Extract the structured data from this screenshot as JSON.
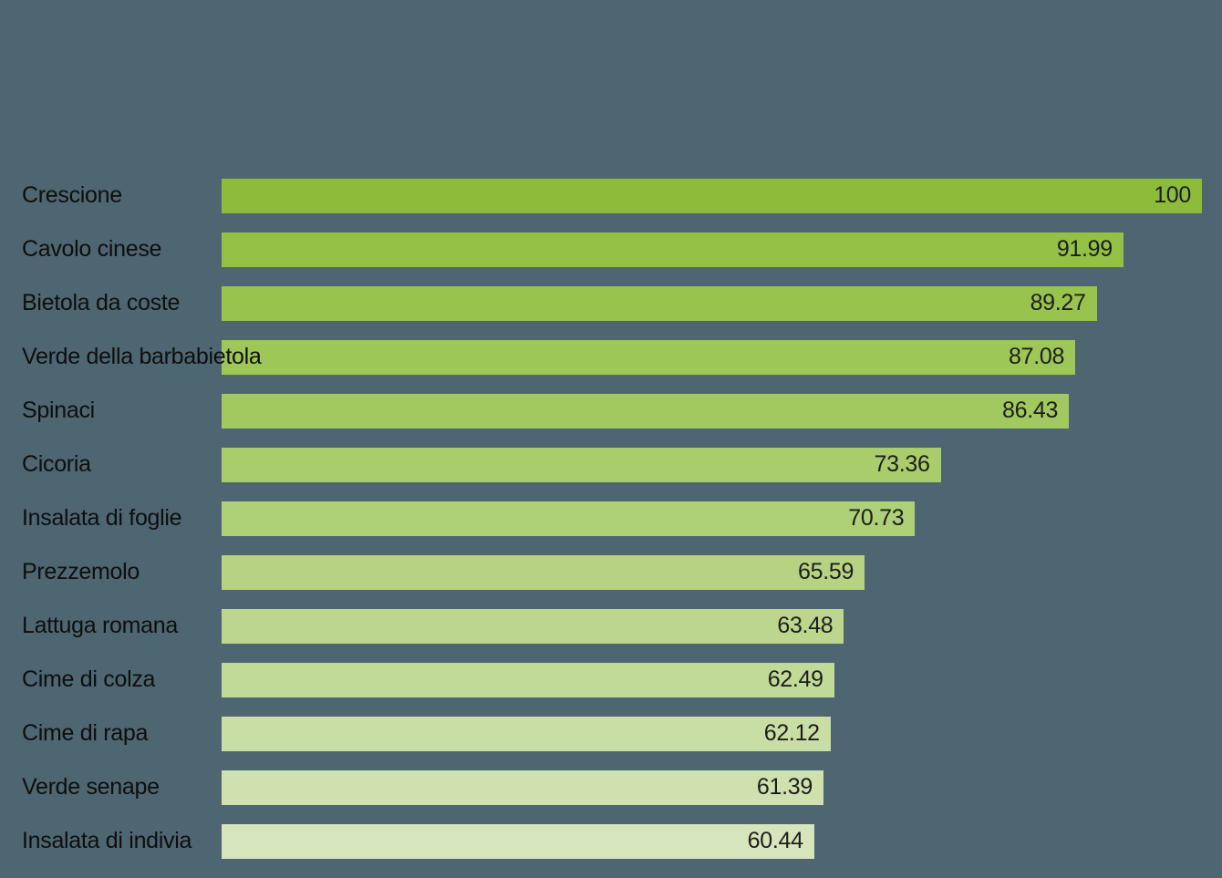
{
  "background_color": "#4d6671",
  "text": {
    "label_color": "#0e0e0e",
    "value_color": "#1d1d1d"
  },
  "chart_data": {
    "type": "bar",
    "orientation": "horizontal",
    "title": "",
    "xlabel": "",
    "ylabel": "",
    "xlim": [
      0,
      100
    ],
    "grid": false,
    "legend": false,
    "categories": [
      "Crescione",
      "Cavolo cinese",
      "Bietola da coste",
      "Verde della barbabietola",
      "Spinaci",
      "Cicoria",
      "Insalata di foglie",
      "Prezzemolo",
      "Lattuga romana",
      "Cime di colza",
      "Cime di rapa",
      "Verde senape",
      "Insalata di indivia"
    ],
    "values": [
      100,
      91.99,
      89.27,
      87.08,
      86.43,
      73.36,
      70.73,
      65.59,
      63.48,
      62.49,
      62.12,
      61.39,
      60.44
    ],
    "value_labels": [
      "100",
      "91.99",
      "89.27",
      "87.08",
      "86.43",
      "73.36",
      "70.73",
      "65.59",
      "63.48",
      "62.49",
      "62.12",
      "61.39",
      "60.44"
    ],
    "bar_colors": [
      "#8cbd3a",
      "#93c146",
      "#98c44e",
      "#9dc757",
      "#a2c95f",
      "#a9cd6b",
      "#aed076",
      "#b5d382",
      "#bcd78d",
      "#c2da98",
      "#c9dea4",
      "#cfe1af",
      "#d6e5bb"
    ]
  }
}
